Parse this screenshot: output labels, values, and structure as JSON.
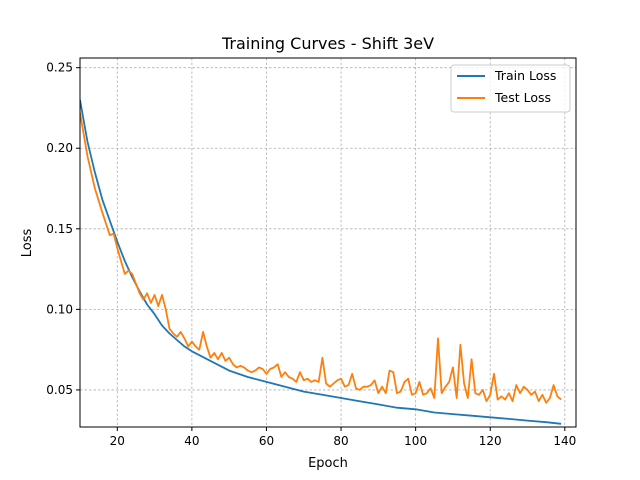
{
  "chart_data": {
    "type": "line",
    "title": "Training Curves - Shift 3eV",
    "xlabel": "Epoch",
    "ylabel": "Loss",
    "xlim": [
      10,
      143
    ],
    "ylim": [
      0.027,
      0.256
    ],
    "xticks": [
      20,
      40,
      60,
      80,
      100,
      120,
      140
    ],
    "yticks": [
      0.05,
      0.1,
      0.15,
      0.2,
      0.25
    ],
    "xtick_labels": [
      "20",
      "40",
      "60",
      "80",
      "100",
      "120",
      "140"
    ],
    "ytick_labels": [
      "0.05",
      "0.10",
      "0.15",
      "0.20",
      "0.25"
    ],
    "grid": true,
    "legend_position": "upper right",
    "series": [
      {
        "name": "Train Loss",
        "color": "#1f77b4",
        "x": [
          10,
          12,
          14,
          16,
          18,
          20,
          22,
          24,
          26,
          28,
          30,
          32,
          34,
          36,
          38,
          40,
          45,
          50,
          55,
          60,
          65,
          70,
          75,
          80,
          85,
          90,
          95,
          100,
          105,
          110,
          115,
          120,
          125,
          130,
          135,
          139
        ],
        "y": [
          0.23,
          0.204,
          0.185,
          0.168,
          0.155,
          0.142,
          0.13,
          0.12,
          0.111,
          0.103,
          0.097,
          0.09,
          0.085,
          0.081,
          0.077,
          0.074,
          0.068,
          0.062,
          0.058,
          0.055,
          0.052,
          0.049,
          0.047,
          0.045,
          0.043,
          0.041,
          0.039,
          0.038,
          0.036,
          0.035,
          0.034,
          0.033,
          0.032,
          0.031,
          0.03,
          0.029
        ]
      },
      {
        "name": "Test Loss",
        "color": "#ff7f0e",
        "x": [
          10,
          12,
          14,
          16,
          18,
          19,
          20,
          21,
          22,
          23,
          24,
          25,
          26,
          27,
          28,
          29,
          30,
          31,
          32,
          33,
          34,
          35,
          36,
          37,
          38,
          39,
          40,
          41,
          42,
          43,
          44,
          45,
          46,
          47,
          48,
          49,
          50,
          51,
          52,
          53,
          54,
          55,
          56,
          57,
          58,
          59,
          60,
          61,
          62,
          63,
          64,
          65,
          66,
          67,
          68,
          69,
          70,
          71,
          72,
          73,
          74,
          75,
          76,
          77,
          78,
          79,
          80,
          81,
          82,
          83,
          84,
          85,
          86,
          87,
          88,
          89,
          90,
          91,
          92,
          93,
          94,
          95,
          96,
          97,
          98,
          99,
          100,
          101,
          102,
          103,
          104,
          105,
          106,
          107,
          108,
          109,
          110,
          111,
          112,
          113,
          114,
          115,
          116,
          117,
          118,
          119,
          120,
          121,
          122,
          123,
          124,
          125,
          126,
          127,
          128,
          129,
          130,
          131,
          132,
          133,
          134,
          135,
          136,
          137,
          138,
          139
        ],
        "y": [
          0.222,
          0.195,
          0.175,
          0.16,
          0.146,
          0.147,
          0.138,
          0.13,
          0.122,
          0.124,
          0.122,
          0.116,
          0.11,
          0.106,
          0.11,
          0.104,
          0.109,
          0.102,
          0.109,
          0.1,
          0.088,
          0.085,
          0.083,
          0.086,
          0.082,
          0.077,
          0.08,
          0.077,
          0.075,
          0.086,
          0.077,
          0.07,
          0.073,
          0.069,
          0.073,
          0.068,
          0.07,
          0.066,
          0.064,
          0.065,
          0.064,
          0.062,
          0.061,
          0.062,
          0.064,
          0.063,
          0.06,
          0.063,
          0.064,
          0.066,
          0.058,
          0.061,
          0.058,
          0.057,
          0.055,
          0.061,
          0.056,
          0.057,
          0.055,
          0.056,
          0.055,
          0.07,
          0.054,
          0.052,
          0.054,
          0.056,
          0.057,
          0.052,
          0.053,
          0.06,
          0.051,
          0.05,
          0.052,
          0.052,
          0.053,
          0.056,
          0.048,
          0.052,
          0.048,
          0.062,
          0.061,
          0.048,
          0.049,
          0.055,
          0.057,
          0.047,
          0.048,
          0.055,
          0.047,
          0.048,
          0.051,
          0.045,
          0.082,
          0.048,
          0.052,
          0.055,
          0.064,
          0.045,
          0.078,
          0.054,
          0.045,
          0.069,
          0.048,
          0.047,
          0.05,
          0.043,
          0.047,
          0.06,
          0.044,
          0.046,
          0.044,
          0.048,
          0.043,
          0.053,
          0.048,
          0.052,
          0.05,
          0.047,
          0.049,
          0.043,
          0.047,
          0.042,
          0.045,
          0.053,
          0.046,
          0.044
        ]
      }
    ]
  }
}
